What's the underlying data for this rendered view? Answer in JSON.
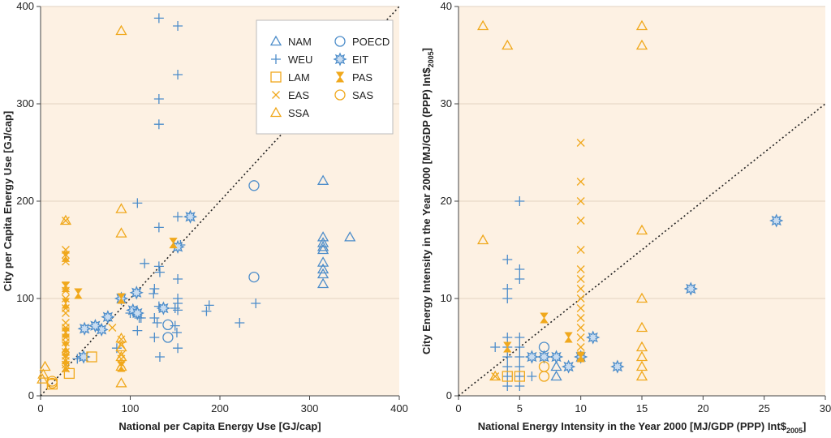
{
  "colors": {
    "blue": "#4d8dca",
    "orange": "#f0a81c",
    "plot_bg": "#fdf1e3",
    "grid": "#e2d3c2",
    "diagonal": "#222222"
  },
  "chart_data": [
    {
      "type": "scatter",
      "xlabel": "National per Capita Energy Use [GJ/cap]",
      "ylabel": "City per Capita Energy Use [GJ/cap]",
      "xlim": [
        0,
        400
      ],
      "ylim": [
        0,
        400
      ],
      "xticks": [
        "0",
        "100",
        "200",
        "300",
        "400"
      ],
      "yticks": [
        "0",
        "100",
        "200",
        "300",
        "400"
      ],
      "grid": "horizontal",
      "reference_line": "1:1 diagonal (dotted)",
      "legend": {
        "placement": "top-right",
        "entries": [
          {
            "name": "NAM",
            "marker": "triangle",
            "color": "blue"
          },
          {
            "name": "POECD",
            "marker": "circle",
            "color": "blue"
          },
          {
            "name": "WEU",
            "marker": "plus",
            "color": "blue"
          },
          {
            "name": "EIT",
            "marker": "star",
            "color": "blue"
          },
          {
            "name": "LAM",
            "marker": "square",
            "color": "orange"
          },
          {
            "name": "PAS",
            "marker": "hourglass",
            "color": "orange"
          },
          {
            "name": "EAS",
            "marker": "x",
            "color": "orange"
          },
          {
            "name": "SAS",
            "marker": "circle",
            "color": "orange"
          },
          {
            "name": "SSA",
            "marker": "triangle",
            "color": "orange"
          }
        ]
      },
      "series": [
        {
          "name": "NAM",
          "marker": "triangle",
          "color": "blue",
          "points": [
            [
              315,
              221
            ],
            [
              345,
              163
            ],
            [
              315,
              163
            ],
            [
              315,
              157
            ],
            [
              315,
              153
            ],
            [
              315,
              150
            ],
            [
              315,
              137
            ],
            [
              315,
              130
            ],
            [
              315,
              125
            ],
            [
              315,
              115
            ]
          ]
        },
        {
          "name": "POECD",
          "marker": "circle",
          "color": "blue",
          "points": [
            [
              238,
              216
            ],
            [
              238,
              122
            ],
            [
              142,
              73
            ],
            [
              142,
              60
            ]
          ]
        },
        {
          "name": "WEU",
          "marker": "plus",
          "color": "blue",
          "points": [
            [
              132,
              388
            ],
            [
              153,
              380
            ],
            [
              153,
              330
            ],
            [
              132,
              305
            ],
            [
              132,
              279
            ],
            [
              108,
              198
            ],
            [
              153,
              184
            ],
            [
              132,
              173
            ],
            [
              156,
              155
            ],
            [
              116,
              136
            ],
            [
              132,
              133
            ],
            [
              133,
              127
            ],
            [
              153,
              120
            ],
            [
              127,
              110
            ],
            [
              126,
              105
            ],
            [
              153,
              100
            ],
            [
              153,
              95
            ],
            [
              150,
              90
            ],
            [
              153,
              88
            ],
            [
              132,
              92
            ],
            [
              100,
              85
            ],
            [
              108,
              83
            ],
            [
              110,
              80
            ],
            [
              112,
              80
            ],
            [
              127,
              80
            ],
            [
              130,
              75
            ],
            [
              150,
              72
            ],
            [
              108,
              67
            ],
            [
              152,
              65
            ],
            [
              127,
              60
            ],
            [
              85,
              49
            ],
            [
              153,
              49
            ],
            [
              133,
              40
            ],
            [
              41,
              38
            ],
            [
              188,
              93
            ],
            [
              185,
              87
            ],
            [
              240,
              95
            ],
            [
              222,
              75
            ]
          ]
        },
        {
          "name": "EIT",
          "marker": "star",
          "color": "blue",
          "points": [
            [
              167,
              184
            ],
            [
              153,
              153
            ],
            [
              107,
              106
            ],
            [
              90,
              100
            ],
            [
              137,
              90
            ],
            [
              75,
              81
            ],
            [
              103,
              88
            ],
            [
              108,
              85
            ],
            [
              68,
              68
            ],
            [
              61,
              72
            ],
            [
              49,
              69
            ],
            [
              48,
              40
            ]
          ]
        },
        {
          "name": "LAM",
          "marker": "square",
          "color": "orange",
          "points": [
            [
              57,
              40
            ],
            [
              32,
              23
            ],
            [
              13,
              12
            ]
          ]
        },
        {
          "name": "PAS",
          "marker": "hourglass",
          "color": "orange",
          "points": [
            [
              42,
              105
            ],
            [
              148,
              157
            ],
            [
              28,
              143
            ],
            [
              28,
              112
            ],
            [
              28,
              95
            ],
            [
              28,
              65
            ],
            [
              28,
              50
            ],
            [
              28,
              38
            ],
            [
              28,
              30
            ],
            [
              90,
              100
            ],
            [
              90,
              30
            ]
          ]
        },
        {
          "name": "EAS",
          "marker": "x",
          "color": "orange",
          "points": [
            [
              28,
              180
            ],
            [
              28,
              150
            ],
            [
              28,
              145
            ],
            [
              28,
              138
            ],
            [
              28,
              113
            ],
            [
              28,
              108
            ],
            [
              28,
              100
            ],
            [
              28,
              90
            ],
            [
              28,
              85
            ],
            [
              28,
              75
            ],
            [
              28,
              70
            ],
            [
              28,
              65
            ],
            [
              28,
              60
            ],
            [
              28,
              55
            ],
            [
              28,
              45
            ],
            [
              28,
              41
            ],
            [
              28,
              36
            ],
            [
              28,
              32
            ],
            [
              28,
              28
            ],
            [
              80,
              70
            ],
            [
              90,
              58
            ],
            [
              90,
              52
            ],
            [
              90,
              42
            ],
            [
              90,
              38
            ],
            [
              90,
              33
            ]
          ]
        },
        {
          "name": "SAS",
          "marker": "circle",
          "color": "orange",
          "points": [
            [
              13,
              15
            ],
            [
              13,
              13
            ]
          ]
        },
        {
          "name": "SSA",
          "marker": "triangle",
          "color": "orange",
          "points": [
            [
              90,
              375
            ],
            [
              90,
              192
            ],
            [
              90,
              167
            ],
            [
              90,
              59
            ],
            [
              90,
              50
            ],
            [
              90,
              40
            ],
            [
              90,
              30
            ],
            [
              90,
              13
            ],
            [
              28,
              180
            ],
            [
              5,
              30
            ],
            [
              3,
              22
            ],
            [
              2,
              17
            ]
          ]
        }
      ]
    },
    {
      "type": "scatter",
      "xlabel": "National Energy Intensity in the Year 2000 [MJ/GDP (PPP) Int$",
      "xlabel_sub": "2005",
      "xlabel_end": "]",
      "ylabel": "City Energy Intensity in the Year 2000 [MJ/GDP (PPP) Int$",
      "ylabel_sub": "2005",
      "ylabel_end": "]",
      "xlim": [
        0,
        30
      ],
      "ylim": [
        0,
        40
      ],
      "xticks": [
        "0",
        "5",
        "10",
        "15",
        "20",
        "25",
        "30"
      ],
      "yticks": [
        "0",
        "10",
        "20",
        "30",
        "40"
      ],
      "grid": "horizontal",
      "reference_line": "1:1 diagonal (dotted)",
      "series": [
        {
          "name": "NAM",
          "marker": "triangle",
          "color": "blue",
          "points": [
            [
              8,
              3
            ],
            [
              8,
              2
            ]
          ]
        },
        {
          "name": "POECD",
          "marker": "circle",
          "color": "blue",
          "points": [
            [
              7,
              5
            ]
          ]
        },
        {
          "name": "WEU",
          "marker": "plus",
          "color": "blue",
          "points": [
            [
              5,
              20
            ],
            [
              4,
              14
            ],
            [
              5,
              13
            ],
            [
              5,
              12
            ],
            [
              4,
              11
            ],
            [
              4,
              10
            ],
            [
              3,
              5
            ],
            [
              4,
              6
            ],
            [
              5,
              6
            ],
            [
              4,
              5
            ],
            [
              5,
              5
            ],
            [
              4,
              4
            ],
            [
              5,
              4
            ],
            [
              4,
              3
            ],
            [
              5,
              3
            ],
            [
              4,
              2
            ],
            [
              5,
              2
            ],
            [
              6,
              2
            ],
            [
              4,
              1
            ],
            [
              5,
              1
            ]
          ]
        },
        {
          "name": "EIT",
          "marker": "star",
          "color": "blue",
          "points": [
            [
              26,
              18
            ],
            [
              19,
              11
            ],
            [
              11,
              6
            ],
            [
              13,
              3
            ],
            [
              9,
              3
            ],
            [
              10,
              4
            ],
            [
              8,
              4
            ],
            [
              7,
              4
            ],
            [
              6,
              4
            ]
          ]
        },
        {
          "name": "LAM",
          "marker": "square",
          "color": "orange",
          "points": [
            [
              4,
              2
            ],
            [
              5,
              2
            ]
          ]
        },
        {
          "name": "PAS",
          "marker": "hourglass",
          "color": "orange",
          "points": [
            [
              7,
              8
            ],
            [
              9,
              6
            ],
            [
              4,
              5
            ],
            [
              10,
              4
            ]
          ]
        },
        {
          "name": "EAS",
          "marker": "x",
          "color": "orange",
          "points": [
            [
              10,
              26
            ],
            [
              10,
              22
            ],
            [
              10,
              20
            ],
            [
              10,
              18
            ],
            [
              10,
              15
            ],
            [
              10,
              13
            ],
            [
              10,
              12
            ],
            [
              10,
              11
            ],
            [
              10,
              10
            ],
            [
              10,
              9
            ],
            [
              10,
              8
            ],
            [
              10,
              7
            ],
            [
              10,
              6
            ],
            [
              10,
              5
            ],
            [
              10,
              4
            ],
            [
              3,
              2
            ]
          ]
        },
        {
          "name": "SAS",
          "marker": "circle",
          "color": "orange",
          "points": [
            [
              7,
              3
            ],
            [
              7,
              2
            ]
          ]
        },
        {
          "name": "SSA",
          "marker": "triangle",
          "color": "orange",
          "points": [
            [
              2,
              38
            ],
            [
              4,
              36
            ],
            [
              15,
              38
            ],
            [
              15,
              36
            ],
            [
              2,
              16
            ],
            [
              15,
              17
            ],
            [
              15,
              10
            ],
            [
              15,
              7
            ],
            [
              15,
              5
            ],
            [
              15,
              4
            ],
            [
              15,
              3
            ],
            [
              15,
              2
            ],
            [
              3,
              2
            ]
          ]
        }
      ]
    }
  ]
}
